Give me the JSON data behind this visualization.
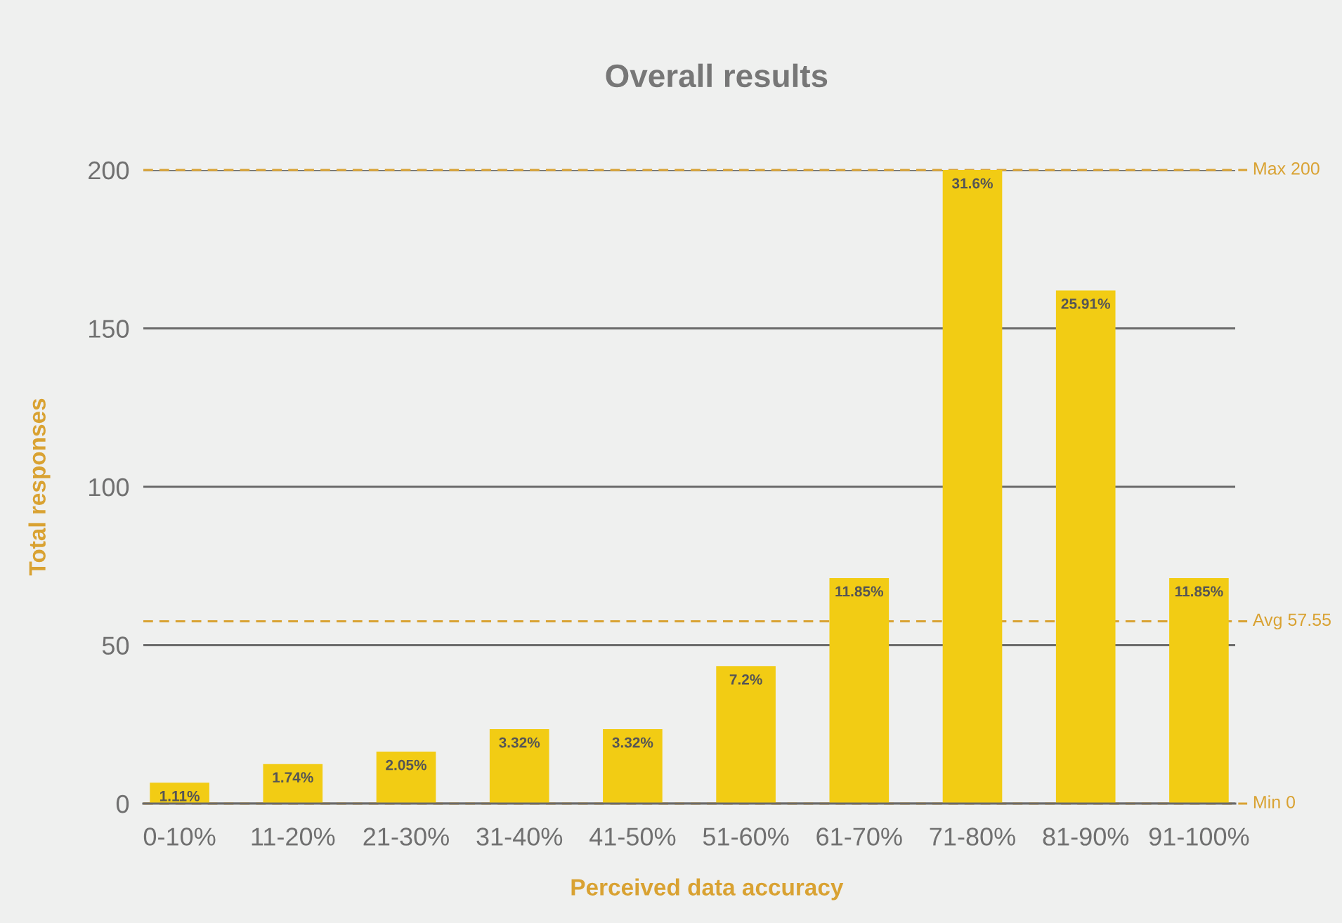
{
  "chart_data": {
    "type": "bar",
    "title": "Overall results",
    "xlabel": "Perceived data accuracy",
    "ylabel": "Total responses",
    "categories": [
      "0-10%",
      "11-20%",
      "21-30%",
      "31-40%",
      "41-50%",
      "51-60%",
      "61-70%",
      "71-80%",
      "81-90%",
      "91-100%"
    ],
    "series": [
      {
        "color": "#f2cc14",
        "values": [
          6.6,
          12.5,
          16.4,
          23.5,
          23.5,
          43.4,
          71.2,
          200,
          162,
          71.2
        ]
      }
    ],
    "annotations": [
      {
        "text": "1.11%",
        "x": "0-10%",
        "y": 6.6
      },
      {
        "text": "1.74%",
        "x": "11-20%",
        "y": 12.5
      },
      {
        "text": "2.05%",
        "x": "21-30%",
        "y": 16.4
      },
      {
        "text": "3.32%",
        "x": "31-40%",
        "y": 23.5
      },
      {
        "text": "3.32%",
        "x": "41-50%",
        "y": 23.5
      },
      {
        "text": "7.2%",
        "x": "51-60%",
        "y": 43.4
      },
      {
        "text": "11.85%",
        "x": "61-70%",
        "y": 71.2
      },
      {
        "text": "31.6%",
        "x": "71-80%",
        "y": 200
      },
      {
        "text": "25.91%",
        "x": "81-90%",
        "y": 162
      },
      {
        "text": "11.85%",
        "x": "91-100%",
        "y": 71.2
      }
    ],
    "ylim": [
      0,
      200
    ],
    "yticks": [
      0,
      50,
      100,
      150,
      200
    ],
    "grid": "y",
    "ref_lines": [
      {
        "axis": "y",
        "value": 200,
        "label": "Max 200",
        "color": "#d9a232",
        "line_style": "dashed"
      },
      {
        "axis": "y",
        "value": 57.55,
        "label": "Avg 57.55",
        "color": "#d9a232",
        "line_style": "dashed"
      },
      {
        "axis": "y",
        "value": 0,
        "label": "Min 0",
        "color": "#d9a232",
        "line_style": "dashed"
      }
    ]
  }
}
